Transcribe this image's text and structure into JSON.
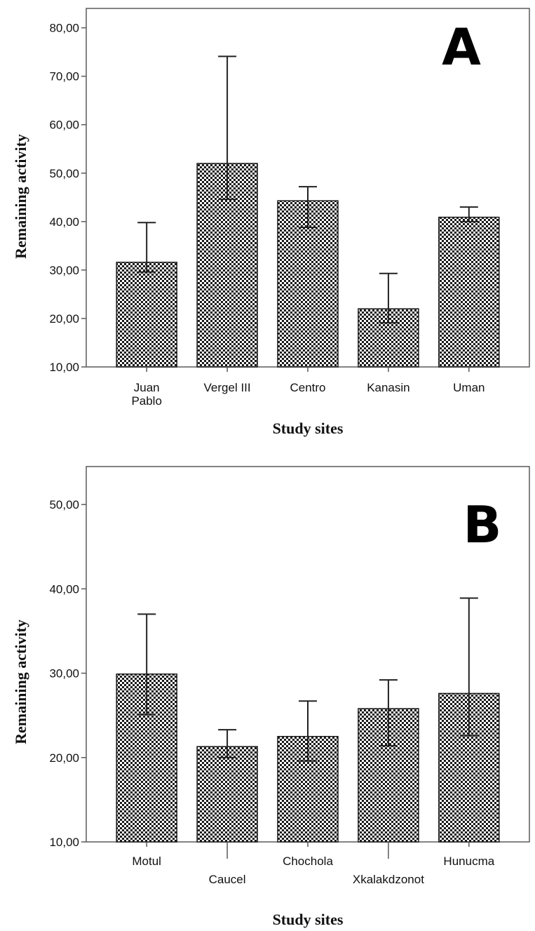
{
  "chart_data": [
    {
      "type": "bar",
      "panel_label": "A",
      "categories": [
        [
          "Juan",
          "Pablo"
        ],
        [
          "Vergel III"
        ],
        [
          "Centro"
        ],
        [
          "Kanasin"
        ],
        [
          "Uman"
        ]
      ],
      "values": [
        31.6,
        52.0,
        44.3,
        22.0,
        40.9
      ],
      "error_upper": [
        39.8,
        74.1,
        47.2,
        29.3,
        43.0
      ],
      "error_lower": [
        29.6,
        44.6,
        38.8,
        19.1,
        40.0
      ],
      "ylim": [
        10,
        84
      ],
      "yticks": [
        "10,00",
        "20,00",
        "30,00",
        "40,00",
        "50,00",
        "60,00",
        "70,00",
        "80,00"
      ],
      "ytick_values": [
        10,
        20,
        30,
        40,
        50,
        60,
        70,
        80
      ],
      "xlabel": "Study sites",
      "ylabel": "Remaining activity",
      "bar_pattern": "checkerboard",
      "grid": false
    },
    {
      "type": "bar",
      "panel_label": "B",
      "categories": [
        [
          "Motul"
        ],
        [
          "Caucel"
        ],
        [
          "Chochola"
        ],
        [
          "Xkalakdzonot"
        ],
        [
          "Hunucma"
        ]
      ],
      "values": [
        29.9,
        21.3,
        22.5,
        25.8,
        27.6
      ],
      "error_upper": [
        37.0,
        23.3,
        26.7,
        29.2,
        38.9
      ],
      "error_lower": [
        25.1,
        20.0,
        19.6,
        21.4,
        22.6
      ],
      "ylim": [
        10,
        54.5
      ],
      "yticks": [
        "10,00",
        "20,00",
        "30,00",
        "40,00",
        "50,00"
      ],
      "ytick_values": [
        10,
        20,
        30,
        40,
        50
      ],
      "xlabel": "Study sites",
      "ylabel": "Remaining activity",
      "bar_pattern": "checkerboard",
      "grid": false
    }
  ],
  "colors": {
    "axis": "#5a5a5a",
    "bar_dark": "#1a1a1a",
    "bar_light": "#ffffff",
    "error": "#222222"
  }
}
